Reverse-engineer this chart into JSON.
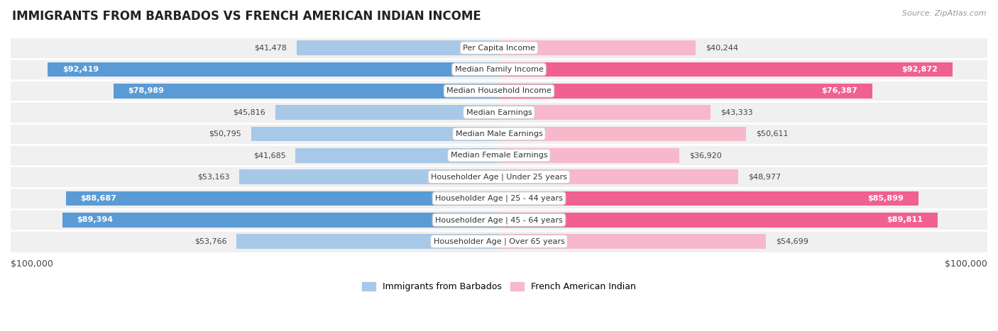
{
  "title": "IMMIGRANTS FROM BARBADOS VS FRENCH AMERICAN INDIAN INCOME",
  "source": "Source: ZipAtlas.com",
  "categories": [
    "Per Capita Income",
    "Median Family Income",
    "Median Household Income",
    "Median Earnings",
    "Median Male Earnings",
    "Median Female Earnings",
    "Householder Age | Under 25 years",
    "Householder Age | 25 - 44 years",
    "Householder Age | 45 - 64 years",
    "Householder Age | Over 65 years"
  ],
  "barbados_values": [
    41478,
    92419,
    78989,
    45816,
    50795,
    41685,
    53163,
    88687,
    89394,
    53766
  ],
  "french_values": [
    40244,
    92872,
    76387,
    43333,
    50611,
    36920,
    48977,
    85899,
    89811,
    54699
  ],
  "max_value": 100000,
  "barbados_light": "#a8c8e8",
  "barbados_dark": "#5b9bd5",
  "french_light": "#f8b8cc",
  "french_dark": "#f06090",
  "label_dark": "#444444",
  "label_white": "#ffffff",
  "row_bg": "#f0f0f0",
  "row_sep": "#dddddd",
  "legend_barbados": "Immigrants from Barbados",
  "legend_french": "French American Indian",
  "xlabel_left": "$100,000",
  "xlabel_right": "$100,000",
  "dark_threshold": 70000,
  "inside_threshold": 65000
}
